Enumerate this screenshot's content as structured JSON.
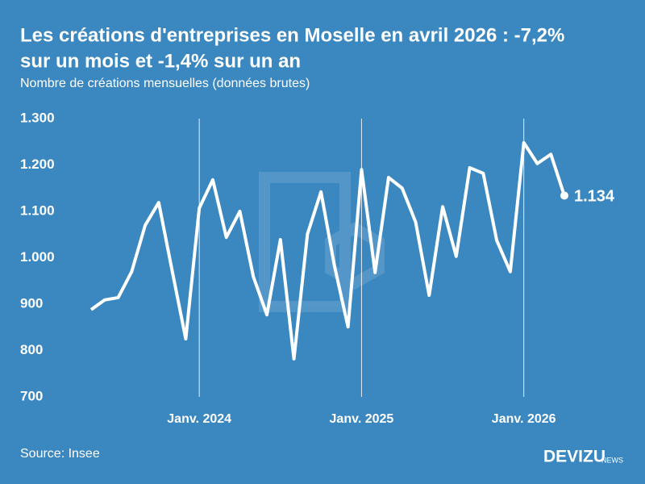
{
  "chart_data": {
    "type": "line",
    "title": [
      "Les créations d'entreprises en Moselle en avril 2026 : -7,2%",
      "sur un mois et -1,4% sur un an"
    ],
    "subtitle": "Nombre de créations mensuelles (données brutes)",
    "source": "Source: Insee",
    "brand": {
      "name": "DEVIZU",
      "suffix": "NEWS"
    },
    "categories": [
      null,
      null,
      null,
      null,
      null,
      null,
      null,
      null,
      "Janv. 2024",
      null,
      null,
      null,
      null,
      null,
      null,
      null,
      null,
      null,
      null,
      null,
      "Janv. 2025",
      null,
      null,
      null,
      null,
      null,
      null,
      null,
      null,
      null,
      null,
      null,
      "Janv. 2026",
      null,
      null,
      null
    ],
    "series": [
      {
        "color": "#ffffff",
        "values": [
          888,
          909,
          914,
          970,
          1070,
          1119,
          971,
          825,
          1107,
          1168,
          1044,
          1100,
          959,
          877,
          1039,
          782,
          1051,
          1142,
          982,
          851,
          1190,
          968,
          1173,
          1150,
          1077,
          919,
          1110,
          1003,
          1194,
          1182,
          1037,
          970,
          1248,
          1203,
          1223,
          1134
        ],
        "value_labels": [
          null,
          null,
          null,
          null,
          null,
          null,
          null,
          null,
          null,
          null,
          null,
          null,
          null,
          null,
          null,
          null,
          null,
          null,
          null,
          null,
          null,
          null,
          null,
          null,
          null,
          null,
          null,
          null,
          null,
          null,
          null,
          null,
          null,
          null,
          null,
          "1.134"
        ]
      }
    ],
    "ylim": [
      700,
      1300
    ],
    "yticks": [
      700,
      800,
      900,
      {
        "value": 1000,
        "label": "1.000"
      },
      {
        "value": 1100,
        "label": "1.100"
      },
      {
        "value": 1200,
        "label": "1.200"
      },
      {
        "value": 1300,
        "label": "1.300"
      }
    ],
    "grid": "x"
  }
}
